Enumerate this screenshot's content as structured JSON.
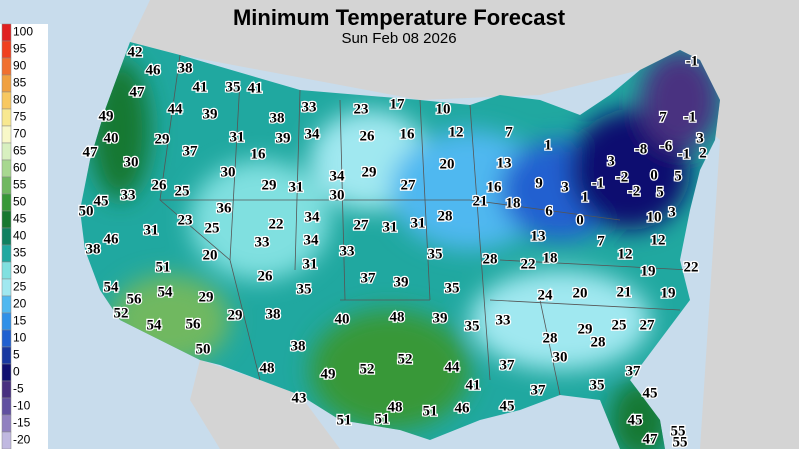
{
  "header": {
    "title": "Minimum Temperature Forecast",
    "subtitle": "Sun Feb 08 2026"
  },
  "legend": {
    "labels": [
      100,
      95,
      90,
      85,
      80,
      75,
      70,
      65,
      60,
      55,
      50,
      45,
      40,
      35,
      30,
      25,
      20,
      15,
      10,
      5,
      0,
      -5,
      -10,
      -15,
      -20
    ],
    "colors": [
      "#e02020",
      "#f04020",
      "#f07030",
      "#f0a040",
      "#f8c860",
      "#f8e890",
      "#f8f8c8",
      "#d8f0c0",
      "#a8d890",
      "#70b860",
      "#389838",
      "#187830",
      "#108060",
      "#20a8a0",
      "#80e0e0",
      "#a0e8f0",
      "#50b8f0",
      "#3090e8",
      "#2060d0",
      "#1838a0",
      "#101070",
      "#483080",
      "#6050a0",
      "#9080c0",
      "#c0b8e0"
    ]
  },
  "map": {
    "temperatures": [
      42,
      46,
      38,
      47,
      41,
      35,
      41,
      44,
      39,
      33,
      23,
      17,
      10,
      49,
      38,
      40,
      29,
      31,
      39,
      34,
      26,
      16,
      12,
      7,
      47,
      37,
      16,
      1,
      7,
      -1,
      -1,
      3,
      -8,
      -6,
      -1,
      2,
      30,
      30,
      29,
      34,
      20,
      13,
      3,
      -2,
      0,
      5,
      26,
      25,
      29,
      31,
      30,
      27,
      16,
      9,
      3,
      -1,
      -2,
      5,
      33,
      45,
      50,
      36,
      21,
      18,
      1,
      31,
      23,
      25,
      22,
      34,
      27,
      31,
      31,
      28,
      6,
      0,
      10,
      3,
      46,
      38,
      20,
      33,
      34,
      33,
      35,
      28,
      13,
      7,
      12,
      31,
      37,
      39,
      22,
      18,
      12,
      19,
      22,
      51,
      26,
      35,
      35,
      24,
      20,
      21,
      19,
      54,
      56,
      54,
      29,
      52,
      29,
      38,
      40,
      48,
      39,
      35,
      33,
      29,
      25,
      27,
      54,
      56,
      28,
      28,
      50,
      38,
      52,
      30,
      37,
      48,
      49,
      52,
      44,
      37,
      43,
      41,
      37,
      35,
      45,
      48,
      51,
      46,
      45,
      51,
      51,
      45,
      47,
      55,
      55
    ]
  }
}
